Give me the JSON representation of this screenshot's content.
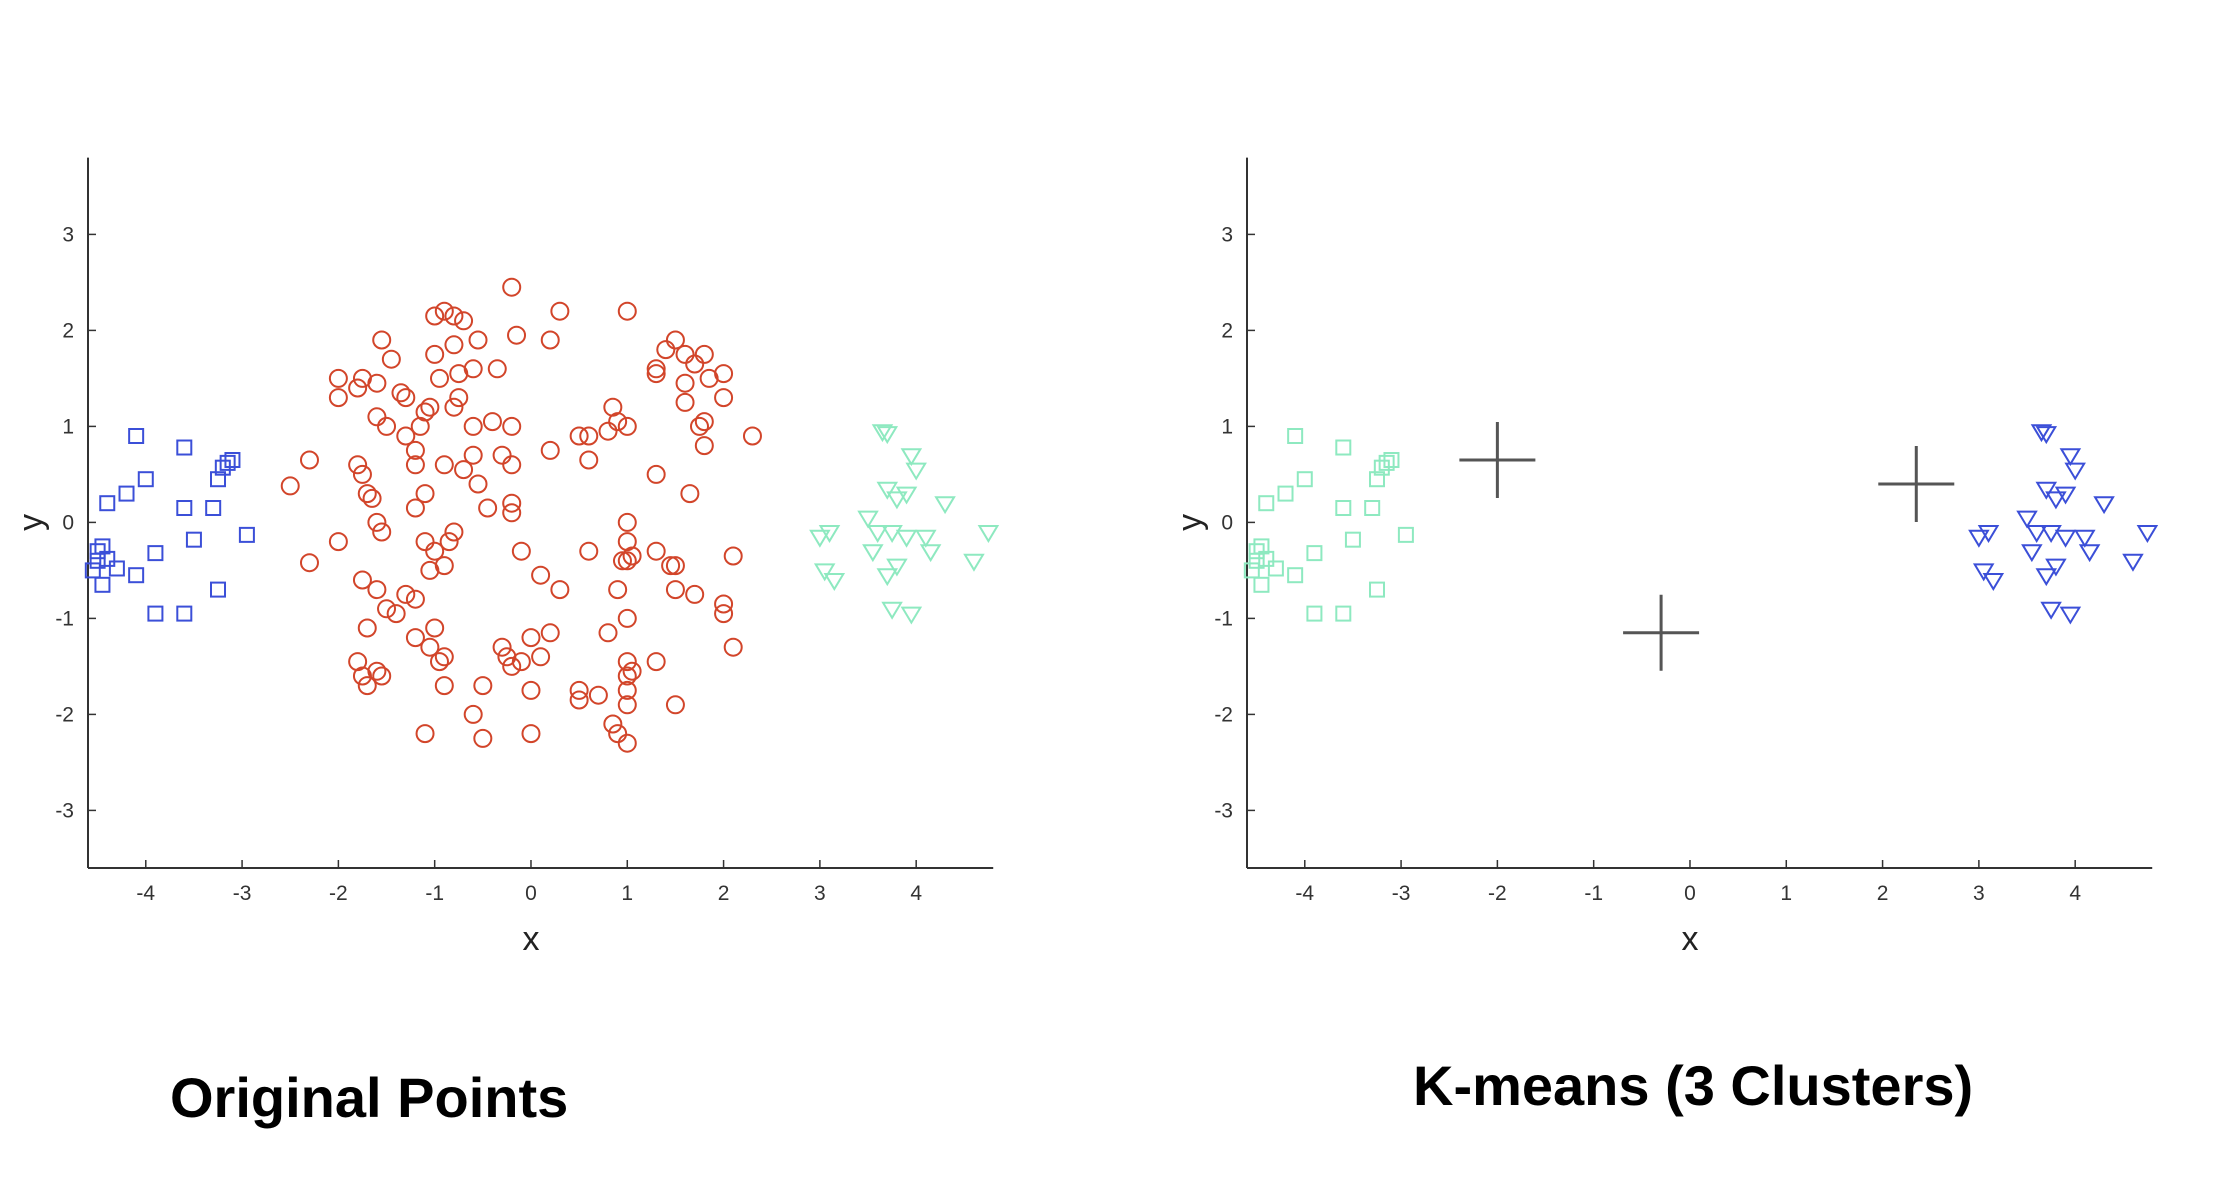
{
  "colors": {
    "blue": "#3b4fd8",
    "red": "#d2452a",
    "green": "#8ee9c0",
    "centroid": "#555555",
    "axis": "#333333"
  },
  "chart_data": [
    {
      "type": "scatter",
      "title": "Original Points",
      "xlabel": "x",
      "ylabel": "y",
      "xlim": [
        -4.6,
        4.8
      ],
      "ylim": [
        -3.6,
        3.8
      ],
      "xticks": [
        -4,
        -3,
        -2,
        -1,
        0,
        1,
        2,
        3,
        4
      ],
      "yticks": [
        -3,
        -2,
        -1,
        0,
        1,
        2,
        3
      ],
      "series": [
        {
          "marker": "square",
          "color": "#3b4fd8",
          "points": [
            [
              -4.1,
              0.9
            ],
            [
              -3.6,
              0.78
            ],
            [
              -3.2,
              0.57
            ],
            [
              -3.15,
              0.62
            ],
            [
              -3.1,
              0.65
            ],
            [
              -3.25,
              0.45
            ],
            [
              -4.4,
              0.2
            ],
            [
              -4.2,
              0.3
            ],
            [
              -4.0,
              0.45
            ],
            [
              -3.6,
              0.15
            ],
            [
              -3.3,
              0.15
            ],
            [
              -4.5,
              -0.3
            ],
            [
              -4.45,
              -0.25
            ],
            [
              -4.4,
              -0.38
            ],
            [
              -4.3,
              -0.48
            ],
            [
              -4.45,
              -0.65
            ],
            [
              -4.55,
              -0.5
            ],
            [
              -4.1,
              -0.55
            ],
            [
              -3.9,
              -0.32
            ],
            [
              -3.5,
              -0.18
            ],
            [
              -3.25,
              -0.7
            ],
            [
              -3.9,
              -0.95
            ],
            [
              -3.6,
              -0.95
            ],
            [
              -2.95,
              -0.13
            ],
            [
              -4.5,
              -0.4
            ]
          ]
        },
        {
          "marker": "circle",
          "color": "#d2452a",
          "points": [
            [
              -2.5,
              0.38
            ],
            [
              -2.3,
              0.65
            ],
            [
              -2.3,
              -0.42
            ],
            [
              -2.0,
              -0.2
            ],
            [
              -1.8,
              0.6
            ],
            [
              -1.75,
              0.5
            ],
            [
              -1.7,
              0.3
            ],
            [
              -1.65,
              0.25
            ],
            [
              -1.6,
              0.0
            ],
            [
              -1.55,
              -0.1
            ],
            [
              -1.75,
              -0.6
            ],
            [
              -1.6,
              -0.7
            ],
            [
              -1.5,
              -0.9
            ],
            [
              -1.4,
              -0.95
            ],
            [
              -1.3,
              -0.75
            ],
            [
              -1.2,
              -0.8
            ],
            [
              -1.7,
              -1.1
            ],
            [
              -1.8,
              -1.45
            ],
            [
              -1.75,
              -1.6
            ],
            [
              -1.7,
              -1.7
            ],
            [
              -1.6,
              -1.55
            ],
            [
              -1.55,
              -1.6
            ],
            [
              -1.2,
              -1.2
            ],
            [
              -1.0,
              -1.1
            ],
            [
              -1.05,
              -1.3
            ],
            [
              -0.9,
              -1.4
            ],
            [
              -0.95,
              -1.45
            ],
            [
              -0.9,
              -1.7
            ],
            [
              -1.1,
              -2.2
            ],
            [
              -0.6,
              -2.0
            ],
            [
              -0.5,
              -2.25
            ],
            [
              -0.5,
              -1.7
            ],
            [
              -0.3,
              -1.3
            ],
            [
              -0.25,
              -1.4
            ],
            [
              -0.2,
              -1.5
            ],
            [
              0.0,
              -1.75
            ],
            [
              0.0,
              -2.2
            ],
            [
              -0.1,
              -1.45
            ],
            [
              0.1,
              -1.4
            ],
            [
              0.2,
              -1.15
            ],
            [
              0.0,
              -1.2
            ],
            [
              0.5,
              -1.75
            ],
            [
              0.5,
              -1.85
            ],
            [
              0.7,
              -1.8
            ],
            [
              0.85,
              -2.1
            ],
            [
              0.9,
              -2.2
            ],
            [
              1.0,
              -2.3
            ],
            [
              1.0,
              -1.9
            ],
            [
              1.0,
              -1.75
            ],
            [
              1.0,
              -1.6
            ],
            [
              1.0,
              -1.45
            ],
            [
              1.05,
              -1.55
            ],
            [
              1.3,
              -1.45
            ],
            [
              1.5,
              -1.9
            ],
            [
              1.0,
              -1.0
            ],
            [
              0.8,
              -1.15
            ],
            [
              0.9,
              -0.7
            ],
            [
              1.0,
              -0.4
            ],
            [
              1.05,
              -0.35
            ],
            [
              0.95,
              -0.4
            ],
            [
              1.0,
              0.0
            ],
            [
              1.0,
              -0.2
            ],
            [
              1.3,
              -0.3
            ],
            [
              1.45,
              -0.45
            ],
            [
              1.5,
              -0.45
            ],
            [
              1.5,
              -0.7
            ],
            [
              1.7,
              -0.75
            ],
            [
              2.0,
              -0.85
            ],
            [
              2.0,
              -0.95
            ],
            [
              2.1,
              -1.3
            ],
            [
              2.1,
              -0.35
            ],
            [
              0.6,
              -0.3
            ],
            [
              0.3,
              -0.7
            ],
            [
              0.1,
              -0.55
            ],
            [
              -0.1,
              -0.3
            ],
            [
              -0.2,
              0.1
            ],
            [
              -0.2,
              0.2
            ],
            [
              -0.45,
              0.15
            ],
            [
              -0.55,
              0.4
            ],
            [
              -0.8,
              -0.1
            ],
            [
              -0.85,
              -0.2
            ],
            [
              -0.9,
              -0.45
            ],
            [
              -1.0,
              -0.3
            ],
            [
              -1.05,
              -0.5
            ],
            [
              -1.1,
              -0.2
            ],
            [
              -1.2,
              0.15
            ],
            [
              -1.1,
              0.3
            ],
            [
              -1.2,
              0.6
            ],
            [
              -1.2,
              0.75
            ],
            [
              -1.3,
              0.9
            ],
            [
              -1.15,
              1.0
            ],
            [
              -1.3,
              1.3
            ],
            [
              -1.1,
              1.15
            ],
            [
              -1.5,
              1.0
            ],
            [
              -1.6,
              1.1
            ],
            [
              -1.6,
              1.45
            ],
            [
              -1.45,
              1.7
            ],
            [
              -1.55,
              1.9
            ],
            [
              -1.75,
              1.5
            ],
            [
              -1.8,
              1.4
            ],
            [
              -2.0,
              1.5
            ],
            [
              -2.0,
              1.3
            ],
            [
              -1.35,
              1.35
            ],
            [
              -1.0,
              1.75
            ],
            [
              -0.95,
              1.5
            ],
            [
              -0.8,
              1.85
            ],
            [
              -0.6,
              1.6
            ],
            [
              -0.75,
              1.55
            ],
            [
              -0.55,
              1.9
            ],
            [
              -0.35,
              1.6
            ],
            [
              -0.2,
              2.45
            ],
            [
              -0.15,
              1.95
            ],
            [
              0.2,
              1.9
            ],
            [
              0.3,
              2.2
            ],
            [
              1.0,
              2.2
            ],
            [
              -0.9,
              2.2
            ],
            [
              -1.0,
              2.15
            ],
            [
              -0.8,
              2.15
            ],
            [
              -0.7,
              2.1
            ],
            [
              -1.05,
              1.2
            ],
            [
              -0.8,
              1.2
            ],
            [
              -0.75,
              1.3
            ],
            [
              -0.6,
              1.0
            ],
            [
              -0.4,
              1.05
            ],
            [
              -0.2,
              1.0
            ],
            [
              -0.3,
              0.7
            ],
            [
              -0.6,
              0.7
            ],
            [
              -0.9,
              0.6
            ],
            [
              -0.7,
              0.55
            ],
            [
              -0.2,
              0.6
            ],
            [
              0.2,
              0.75
            ],
            [
              0.6,
              0.9
            ],
            [
              0.8,
              0.95
            ],
            [
              0.9,
              1.05
            ],
            [
              1.0,
              1.0
            ],
            [
              0.85,
              1.2
            ],
            [
              0.5,
              0.9
            ],
            [
              0.6,
              0.65
            ],
            [
              1.3,
              0.5
            ],
            [
              1.3,
              1.6
            ],
            [
              1.3,
              1.55
            ],
            [
              1.4,
              1.8
            ],
            [
              1.5,
              1.9
            ],
            [
              1.6,
              1.75
            ],
            [
              1.7,
              1.65
            ],
            [
              1.8,
              1.75
            ],
            [
              1.85,
              1.5
            ],
            [
              1.6,
              1.45
            ],
            [
              2.0,
              1.55
            ],
            [
              2.0,
              1.3
            ],
            [
              1.6,
              1.25
            ],
            [
              1.75,
              1.0
            ],
            [
              1.8,
              1.05
            ],
            [
              1.8,
              0.8
            ],
            [
              1.65,
              0.3
            ],
            [
              2.3,
              0.9
            ]
          ]
        },
        {
          "marker": "triangle",
          "color": "#8ee9c0",
          "points": [
            [
              3.65,
              0.95
            ],
            [
              3.7,
              0.93
            ],
            [
              3.95,
              0.7
            ],
            [
              4.0,
              0.55
            ],
            [
              3.7,
              0.35
            ],
            [
              3.8,
              0.25
            ],
            [
              3.9,
              0.3
            ],
            [
              4.3,
              0.2
            ],
            [
              4.75,
              -0.1
            ],
            [
              3.5,
              0.05
            ],
            [
              3.6,
              -0.1
            ],
            [
              3.75,
              -0.1
            ],
            [
              3.9,
              -0.15
            ],
            [
              4.1,
              -0.15
            ],
            [
              4.15,
              -0.3
            ],
            [
              4.6,
              -0.4
            ],
            [
              3.1,
              -0.1
            ],
            [
              3.0,
              -0.15
            ],
            [
              3.05,
              -0.5
            ],
            [
              3.15,
              -0.6
            ],
            [
              3.7,
              -0.55
            ],
            [
              3.8,
              -0.45
            ],
            [
              3.75,
              -0.9
            ],
            [
              3.95,
              -0.95
            ],
            [
              3.55,
              -0.3
            ]
          ]
        }
      ]
    },
    {
      "type": "scatter",
      "title": "K-means (3 Clusters)",
      "xlabel": "x",
      "ylabel": "y",
      "xlim": [
        -4.6,
        4.8
      ],
      "ylim": [
        -3.6,
        3.8
      ],
      "xticks": [
        -4,
        -3,
        -2,
        -1,
        0,
        1,
        2,
        3,
        4
      ],
      "yticks": [
        -3,
        -2,
        -1,
        0,
        1,
        2,
        3
      ],
      "centroids": [
        [
          -2.0,
          0.65
        ],
        [
          -0.3,
          -1.15
        ],
        [
          2.35,
          0.4
        ]
      ],
      "series": [
        {
          "marker": "square",
          "color": "#8ee9c0",
          "points": [
            [
              -4.1,
              0.9
            ],
            [
              -3.6,
              0.78
            ],
            [
              -3.2,
              0.57
            ],
            [
              -3.15,
              0.62
            ],
            [
              -3.1,
              0.65
            ],
            [
              -3.25,
              0.45
            ],
            [
              -4.4,
              0.2
            ],
            [
              -4.2,
              0.3
            ],
            [
              -4.0,
              0.45
            ],
            [
              -3.6,
              0.15
            ],
            [
              -3.3,
              0.15
            ],
            [
              -4.5,
              -0.3
            ],
            [
              -4.45,
              -0.25
            ],
            [
              -4.4,
              -0.38
            ],
            [
              -4.3,
              -0.48
            ],
            [
              -4.45,
              -0.65
            ],
            [
              -4.55,
              -0.5
            ],
            [
              -4.1,
              -0.55
            ],
            [
              -3.9,
              -0.32
            ],
            [
              -3.5,
              -0.18
            ],
            [
              -3.25,
              -0.7
            ],
            [
              -3.9,
              -0.95
            ],
            [
              -3.6,
              -0.95
            ],
            [
              -2.95,
              -0.13
            ],
            [
              -4.5,
              -0.4
            ]
          ]
        },
        {
          "marker": "triangle",
          "color": "#3b4fd8",
          "points": [
            [
              3.65,
              0.95
            ],
            [
              3.7,
              0.93
            ],
            [
              3.95,
              0.7
            ],
            [
              4.0,
              0.55
            ],
            [
              3.7,
              0.35
            ],
            [
              3.8,
              0.25
            ],
            [
              3.9,
              0.3
            ],
            [
              4.3,
              0.2
            ],
            [
              4.75,
              -0.1
            ],
            [
              3.5,
              0.05
            ],
            [
              3.6,
              -0.1
            ],
            [
              3.75,
              -0.1
            ],
            [
              3.9,
              -0.15
            ],
            [
              4.1,
              -0.15
            ],
            [
              4.15,
              -0.3
            ],
            [
              4.6,
              -0.4
            ],
            [
              3.1,
              -0.1
            ],
            [
              3.0,
              -0.15
            ],
            [
              3.05,
              -0.5
            ],
            [
              3.15,
              -0.6
            ],
            [
              3.7,
              -0.55
            ],
            [
              3.8,
              -0.45
            ],
            [
              3.75,
              -0.9
            ],
            [
              3.95,
              -0.95
            ],
            [
              3.55,
              -0.3
            ]
          ]
        }
      ]
    }
  ],
  "captions": {
    "left": "Original Points",
    "right": "K-means (3 Clusters)"
  }
}
